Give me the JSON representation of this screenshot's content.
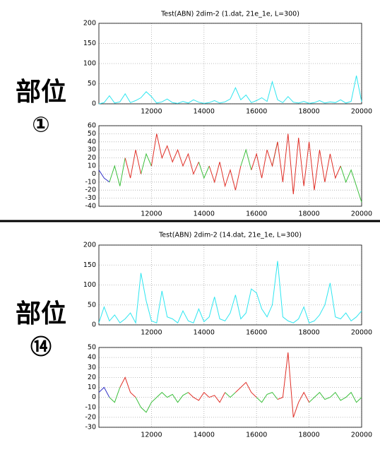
{
  "sections": [
    {
      "title": "部位",
      "number": "①"
    },
    {
      "title": "部位",
      "number": "⑭"
    }
  ],
  "chart_data": [
    {
      "type": "line",
      "title": "Test(ABN) 2dim-2 (1.dat, 21e_1e, L=300)",
      "x": [
        10000,
        10200,
        10400,
        10600,
        10800,
        11000,
        11200,
        11400,
        11600,
        11800,
        12000,
        12200,
        12400,
        12600,
        12800,
        13000,
        13200,
        13400,
        13600,
        13800,
        14000,
        14200,
        14400,
        14600,
        14800,
        15000,
        15200,
        15400,
        15600,
        15800,
        16000,
        16200,
        16400,
        16600,
        16800,
        17000,
        17200,
        17400,
        17600,
        17800,
        18000,
        18200,
        18400,
        18600,
        18800,
        19000,
        19200,
        19400,
        19600,
        19800,
        20000
      ],
      "series": [
        {
          "color": "#2ee6f0",
          "values": [
            0,
            3,
            20,
            2,
            5,
            25,
            3,
            8,
            15,
            30,
            18,
            2,
            5,
            12,
            3,
            1,
            6,
            2,
            10,
            4,
            1,
            3,
            8,
            2,
            5,
            12,
            40,
            10,
            22,
            3,
            8,
            15,
            6,
            55,
            10,
            3,
            18,
            4,
            2,
            6,
            1,
            3,
            8,
            2,
            5,
            3,
            10,
            2,
            6,
            70,
            5
          ]
        }
      ],
      "xlim": [
        10000,
        20000
      ],
      "xticks": [
        12000,
        14000,
        16000,
        18000,
        20000
      ],
      "ylim": [
        0,
        200
      ],
      "yticks": [
        0,
        50,
        100,
        150,
        200
      ],
      "grid": true
    },
    {
      "type": "line",
      "x": [
        10000,
        10200,
        10400,
        10600,
        10800,
        11000,
        11200,
        11400,
        11600,
        11800,
        12000,
        12200,
        12400,
        12600,
        12800,
        13000,
        13200,
        13400,
        13600,
        13800,
        14000,
        14200,
        14400,
        14600,
        14800,
        15000,
        15200,
        15400,
        15600,
        15800,
        16000,
        16200,
        16400,
        16600,
        16800,
        17000,
        17200,
        17400,
        17600,
        17800,
        18000,
        18200,
        18400,
        18600,
        18800,
        19000,
        19200,
        19400,
        19600,
        19800,
        20000
      ],
      "series": [
        {
          "color": "#3535c8",
          "values": [
            5,
            -5,
            -10,
            null,
            null,
            null,
            null,
            null,
            null,
            null,
            null,
            null,
            null,
            null,
            null,
            null,
            null,
            null,
            null,
            null,
            null,
            null,
            null,
            null,
            null,
            null,
            null,
            null,
            null,
            null,
            null,
            null,
            null,
            null,
            null,
            null,
            null,
            null,
            null,
            null,
            null,
            null,
            null,
            null,
            null,
            null,
            null,
            null,
            null,
            null,
            null
          ]
        },
        {
          "color": "#3cbf3c",
          "values": [
            null,
            null,
            -10,
            10,
            -15,
            20,
            null,
            null,
            0,
            25,
            10,
            null,
            null,
            null,
            null,
            null,
            null,
            null,
            null,
            15,
            -5,
            10,
            null,
            null,
            null,
            null,
            null,
            10,
            30,
            5,
            null,
            null,
            null,
            10,
            40,
            null,
            null,
            null,
            null,
            null,
            null,
            null,
            null,
            null,
            null,
            null,
            10,
            -10,
            5,
            -15,
            -35
          ]
        },
        {
          "color": "#e03028",
          "values": [
            null,
            null,
            null,
            null,
            null,
            20,
            -5,
            30,
            0,
            null,
            10,
            50,
            20,
            35,
            15,
            30,
            10,
            25,
            0,
            15,
            null,
            10,
            -10,
            15,
            -15,
            5,
            -20,
            10,
            null,
            5,
            25,
            -5,
            30,
            10,
            40,
            -10,
            50,
            -25,
            45,
            -15,
            40,
            -20,
            30,
            -10,
            25,
            -5,
            10,
            null,
            null,
            null,
            null
          ]
        }
      ],
      "xlim": [
        10000,
        20000
      ],
      "xticks": [
        12000,
        14000,
        16000,
        18000,
        20000
      ],
      "ylim": [
        -40,
        60
      ],
      "yticks": [
        -40,
        -30,
        -20,
        -10,
        0,
        10,
        20,
        30,
        40,
        50,
        60
      ],
      "grid": true
    },
    {
      "type": "line",
      "title": "Test(ABN) 2dim-2 (14.dat, 21e_1e, L=300)",
      "x": [
        10000,
        10200,
        10400,
        10600,
        10800,
        11000,
        11200,
        11400,
        11600,
        11800,
        12000,
        12200,
        12400,
        12600,
        12800,
        13000,
        13200,
        13400,
        13600,
        13800,
        14000,
        14200,
        14400,
        14600,
        14800,
        15000,
        15200,
        15400,
        15600,
        15800,
        16000,
        16200,
        16400,
        16600,
        16800,
        17000,
        17200,
        17400,
        17600,
        17800,
        18000,
        18200,
        18400,
        18600,
        18800,
        19000,
        19200,
        19400,
        19600,
        19800,
        20000
      ],
      "series": [
        {
          "color": "#2ee6f0",
          "values": [
            5,
            45,
            10,
            25,
            5,
            15,
            30,
            5,
            130,
            60,
            10,
            5,
            85,
            20,
            15,
            5,
            35,
            10,
            5,
            40,
            8,
            20,
            70,
            15,
            10,
            30,
            75,
            15,
            30,
            90,
            80,
            40,
            20,
            50,
            160,
            20,
            10,
            5,
            15,
            45,
            5,
            10,
            25,
            50,
            105,
            20,
            15,
            30,
            10,
            20,
            35
          ]
        }
      ],
      "xlim": [
        10000,
        20000
      ],
      "xticks": [
        12000,
        14000,
        16000,
        18000,
        20000
      ],
      "ylim": [
        0,
        200
      ],
      "yticks": [
        0,
        50,
        100,
        150,
        200
      ],
      "grid": true
    },
    {
      "type": "line",
      "x": [
        10000,
        10200,
        10400,
        10600,
        10800,
        11000,
        11200,
        11400,
        11600,
        11800,
        12000,
        12200,
        12400,
        12600,
        12800,
        13000,
        13200,
        13400,
        13600,
        13800,
        14000,
        14200,
        14400,
        14600,
        14800,
        15000,
        15200,
        15400,
        15600,
        15800,
        16000,
        16200,
        16400,
        16600,
        16800,
        17000,
        17200,
        17400,
        17600,
        17800,
        18000,
        18200,
        18400,
        18600,
        18800,
        19000,
        19200,
        19400,
        19600,
        19800,
        20000
      ],
      "series": [
        {
          "color": "#3535c8",
          "values": [
            5,
            10,
            0,
            null,
            null,
            null,
            null,
            null,
            null,
            null,
            null,
            null,
            null,
            null,
            null,
            null,
            null,
            null,
            null,
            null,
            null,
            null,
            null,
            null,
            null,
            null,
            null,
            null,
            null,
            null,
            null,
            null,
            null,
            null,
            null,
            null,
            null,
            null,
            null,
            null,
            null,
            null,
            null,
            null,
            null,
            null,
            null,
            null,
            null,
            null,
            null
          ]
        },
        {
          "color": "#3cbf3c",
          "values": [
            null,
            null,
            0,
            -5,
            10,
            null,
            null,
            0,
            -10,
            -15,
            -5,
            0,
            5,
            0,
            3,
            -5,
            2,
            5,
            null,
            null,
            null,
            null,
            null,
            null,
            5,
            0,
            5,
            null,
            null,
            null,
            0,
            -5,
            3,
            5,
            -2,
            null,
            null,
            null,
            null,
            null,
            -5,
            0,
            5,
            -2,
            0,
            5,
            -3,
            0,
            5,
            -5,
            0
          ]
        },
        {
          "color": "#e03028",
          "values": [
            null,
            null,
            null,
            null,
            10,
            20,
            5,
            0,
            null,
            null,
            null,
            null,
            null,
            null,
            null,
            null,
            null,
            5,
            0,
            -3,
            5,
            0,
            2,
            -5,
            5,
            null,
            5,
            10,
            15,
            5,
            0,
            null,
            null,
            null,
            -2,
            0,
            45,
            -20,
            -5,
            5,
            -5,
            null,
            null,
            null,
            null,
            null,
            null,
            null,
            null,
            null,
            null
          ]
        }
      ],
      "xlim": [
        10000,
        20000
      ],
      "xticks": [
        12000,
        14000,
        16000,
        18000,
        20000
      ],
      "ylim": [
        -30,
        50
      ],
      "yticks": [
        -30,
        -20,
        -10,
        0,
        10,
        20,
        30,
        40,
        50
      ],
      "grid": true
    }
  ]
}
